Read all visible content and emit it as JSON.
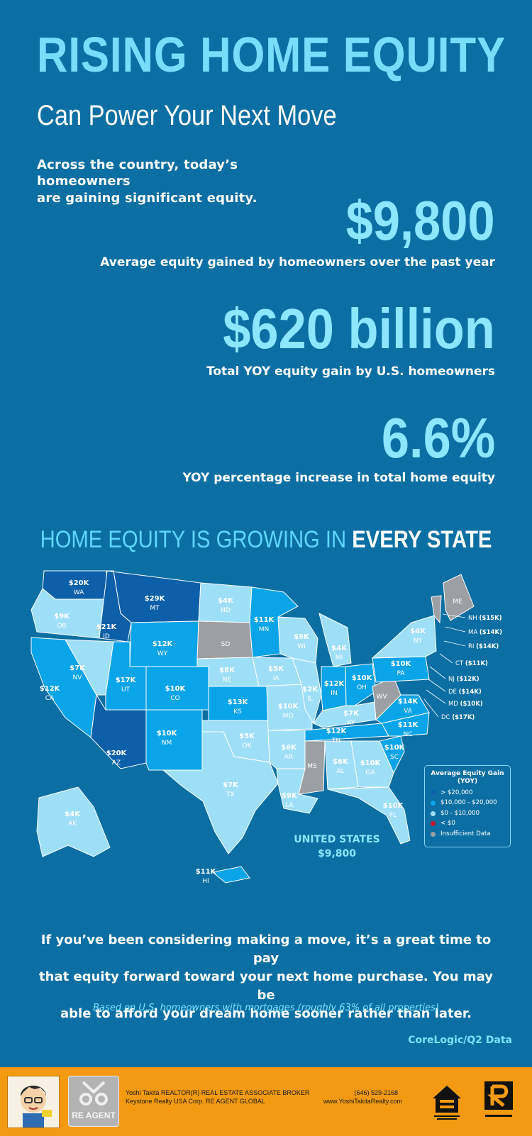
{
  "header": {
    "title": "RISING HOME EQUITY",
    "subtitle": "Can Power Your Next Move",
    "intro_line1": "Across the country, today’s homeowners",
    "intro_line2": "are gaining significant equity."
  },
  "stats": [
    {
      "value": "$9,800",
      "label": "Average equity gained by homeowners over the past year"
    },
    {
      "value": "$620 billion",
      "label": "Total YOY equity gain by U.S. homeowners"
    },
    {
      "value": "6.6%",
      "label": "YOY percentage increase in total home equity"
    }
  ],
  "map": {
    "heading_prefix": "HOME EQUITY IS GROWING IN ",
    "heading_emphasis": "EVERY STATE",
    "states": [
      {
        "abbr": "WA",
        "value": "$20K",
        "category": "gt20"
      },
      {
        "abbr": "OR",
        "value": "$9K",
        "category": "0to10"
      },
      {
        "abbr": "CA",
        "value": "$12K",
        "category": "10to20"
      },
      {
        "abbr": "NV",
        "value": "$7K",
        "category": "0to10"
      },
      {
        "abbr": "ID",
        "value": "$21K",
        "category": "gt20"
      },
      {
        "abbr": "MT",
        "value": "$29K",
        "category": "gt20"
      },
      {
        "abbr": "WY",
        "value": "$12K",
        "category": "10to20"
      },
      {
        "abbr": "UT",
        "value": "$17K",
        "category": "10to20"
      },
      {
        "abbr": "AZ",
        "value": "$20K",
        "category": "gt20"
      },
      {
        "abbr": "CO",
        "value": "$10K",
        "category": "10to20"
      },
      {
        "abbr": "NM",
        "value": "$10K",
        "category": "10to20"
      },
      {
        "abbr": "ND",
        "value": "$4K",
        "category": "0to10"
      },
      {
        "abbr": "SD",
        "value": "",
        "category": "insufficient"
      },
      {
        "abbr": "NE",
        "value": "$8K",
        "category": "0to10"
      },
      {
        "abbr": "KS",
        "value": "$13K",
        "category": "10to20"
      },
      {
        "abbr": "OK",
        "value": "$5K",
        "category": "0to10"
      },
      {
        "abbr": "TX",
        "value": "$7K",
        "category": "0to10"
      },
      {
        "abbr": "MN",
        "value": "$11K",
        "category": "10to20"
      },
      {
        "abbr": "IA",
        "value": "$5K",
        "category": "0to10"
      },
      {
        "abbr": "MO",
        "value": "$10K",
        "category": "0to10"
      },
      {
        "abbr": "AR",
        "value": "$6K",
        "category": "0to10"
      },
      {
        "abbr": "LA",
        "value": "$9K",
        "category": "0to10"
      },
      {
        "abbr": "WI",
        "value": "$9K",
        "category": "0to10"
      },
      {
        "abbr": "IL",
        "value": "$2K",
        "category": "0to10"
      },
      {
        "abbr": "MI",
        "value": "$4K",
        "category": "0to10"
      },
      {
        "abbr": "IN",
        "value": "$12K",
        "category": "10to20"
      },
      {
        "abbr": "OH",
        "value": "$10K",
        "category": "10to20"
      },
      {
        "abbr": "KY",
        "value": "$7K",
        "category": "0to10"
      },
      {
        "abbr": "TN",
        "value": "$12K",
        "category": "10to20"
      },
      {
        "abbr": "MS",
        "value": "",
        "category": "insufficient"
      },
      {
        "abbr": "AL",
        "value": "$6K",
        "category": "0to10"
      },
      {
        "abbr": "GA",
        "value": "$10K",
        "category": "0to10"
      },
      {
        "abbr": "FL",
        "value": "$10K",
        "category": "0to10"
      },
      {
        "abbr": "SC",
        "value": "$10K",
        "category": "10to20"
      },
      {
        "abbr": "NC",
        "value": "$11K",
        "category": "10to20"
      },
      {
        "abbr": "VA",
        "value": "$14K",
        "category": "10to20"
      },
      {
        "abbr": "WV",
        "value": "",
        "category": "insufficient"
      },
      {
        "abbr": "PA",
        "value": "$10K",
        "category": "10to20"
      },
      {
        "abbr": "NY",
        "value": "$4K",
        "category": "0to10"
      },
      {
        "abbr": "VT",
        "value": "",
        "category": "insufficient"
      },
      {
        "abbr": "ME",
        "value": "",
        "category": "insufficient"
      },
      {
        "abbr": "AK",
        "value": "$4K",
        "category": "0to10"
      },
      {
        "abbr": "HI",
        "value": "$11K",
        "category": "10to20"
      }
    ],
    "callouts": [
      {
        "abbr": "NH",
        "value": "($15K)"
      },
      {
        "abbr": "MA",
        "value": "($14K)"
      },
      {
        "abbr": "RI",
        "value": "($14K)"
      },
      {
        "abbr": "CT",
        "value": "($11K)"
      },
      {
        "abbr": "NJ",
        "value": "($12K)"
      },
      {
        "abbr": "DE",
        "value": "($14K)"
      },
      {
        "abbr": "MD",
        "value": "($10K)"
      },
      {
        "abbr": "DC",
        "value": "($17K)"
      }
    ],
    "us_label": "UNITED STATES",
    "us_value": "$9,800",
    "legend": {
      "title_line1": "Average Equity Gain",
      "title_line2": "(YOY)",
      "items": [
        {
          "label": "> $20,000",
          "color": "#0c5fa8"
        },
        {
          "label": "$10,000 - $20,000",
          "color": "#0aa4e8"
        },
        {
          "label": "$0 - $10,000",
          "color": "#9edff8"
        },
        {
          "label": "< $0",
          "color": "#c5162e"
        },
        {
          "label": "Insufficient Data",
          "color": "#9c9fa3"
        }
      ]
    }
  },
  "closing": {
    "line1": "If you’ve been considering making a move, it’s a great time to pay",
    "line2": "that equity forward toward your next home purchase. You may be",
    "line3": "able to afford your dream home sooner rather than later.",
    "footnote": "Based on U.S. homeowners with mortgages (roughly 63% of all properties)",
    "source": "CoreLogic/Q2 Data"
  },
  "footer": {
    "agent_line1": "Yoshi Takita REALTOR(R) REAL ESTATE ASSOCIATE BROKER",
    "agent_line2": "Keystone Realty USA Corp.  RE AGENT GLOBAL",
    "phone": "(646) 529-2168",
    "website": "www.YoshiTakitaRealty.com",
    "logo_text": "RE AGENT"
  },
  "colors": {
    "background": "#0b6fa3",
    "accent_light": "#8be6ff",
    "gt20": "#0c5fa8",
    "tenToTwenty": "#0aa4e8",
    "zeroToTen": "#9edff8",
    "insufficient": "#9c9fa3",
    "footer": "#f39a12"
  }
}
